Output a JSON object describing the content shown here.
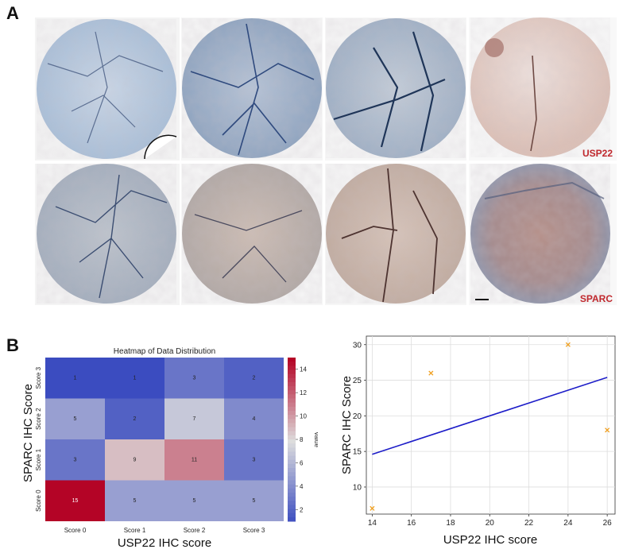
{
  "figure": {
    "panel_a": "A",
    "panel_b": "B",
    "stain_labels": [
      "USP22",
      "SPARC"
    ]
  },
  "colors": {
    "usp22_label": "#c0282d",
    "line": "#1c1cc8",
    "marker": "#f0a020",
    "heat_low": "#3b4cc0",
    "heat_mid": "#dddddd",
    "heat_high": "#b40426"
  },
  "chart_data": [
    {
      "type": "heatmap",
      "title": "Heatmap of Data Distribution",
      "xlabel": "USP22 IHC score",
      "ylabel": "SPARC IHC Score",
      "x_categories": [
        "Score 0",
        "Score 1",
        "Score 2",
        "Score 3"
      ],
      "y_categories": [
        "Score 3",
        "Score 2",
        "Score 1",
        "Score 0"
      ],
      "values": [
        [
          1,
          1,
          3,
          2
        ],
        [
          5,
          2,
          7,
          4
        ],
        [
          3,
          9,
          11,
          3
        ],
        [
          15,
          5,
          5,
          5
        ]
      ],
      "colorbar": {
        "label": "Value",
        "min": 1,
        "max": 15,
        "ticks": [
          2,
          4,
          6,
          8,
          10,
          12,
          14
        ]
      },
      "colormap": "coolwarm"
    },
    {
      "type": "scatter",
      "xlabel": "USP22 IHC score",
      "ylabel": "SPARC IHC Score",
      "points": {
        "x": [
          14,
          17,
          24,
          26
        ],
        "y": [
          7,
          26,
          30,
          18
        ]
      },
      "fit_line": {
        "x": [
          14,
          26
        ],
        "y": [
          14.6,
          25.4
        ]
      },
      "xlim": [
        13.7,
        26.4
      ],
      "ylim": [
        6.2,
        31.2
      ],
      "xticks": [
        14,
        16,
        18,
        20,
        22,
        24,
        26
      ],
      "yticks": [
        10,
        15,
        20,
        25,
        30
      ],
      "grid": true
    }
  ]
}
